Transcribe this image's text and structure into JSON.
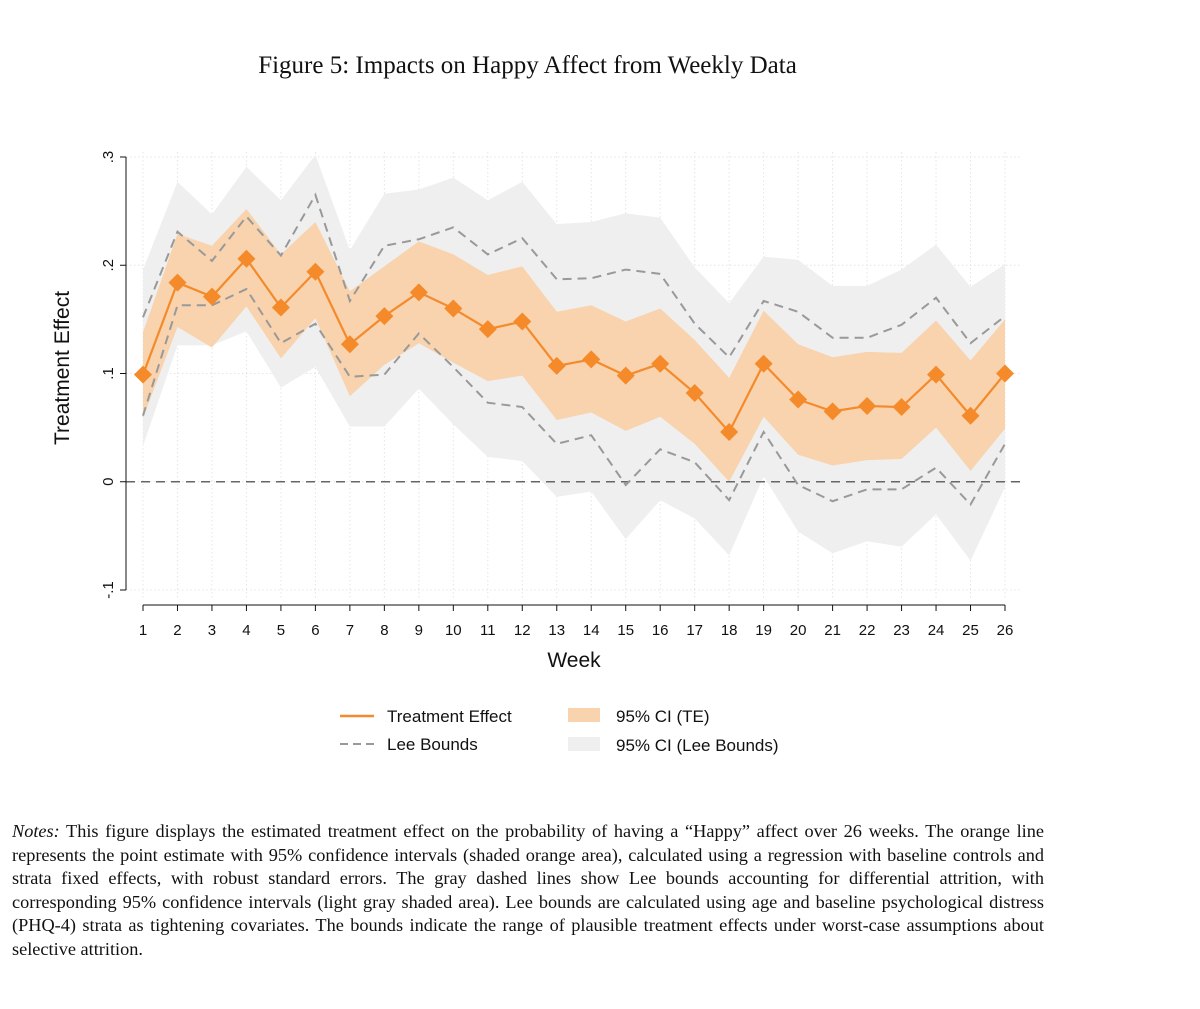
{
  "figure_title": "Figure 5: Impacts on Happy Affect from Weekly Data",
  "notes_label": "Notes:",
  "notes_text": "This figure displays the estimated treatment effect on the probability of having a “Happy” affect over 26 weeks. The orange line represents the point estimate with 95% confidence intervals (shaded orange area), calculated using a regression with baseline controls and strata fixed effects, with robust standard errors. The gray dashed lines show Lee bounds accounting for differential attrition, with corresponding 95% confidence intervals (light gray shaded area). Lee bounds are calculated using age and baseline psychological distress (PHQ-4) strata as tightening covariates. The bounds indicate the range of plausible treatment effects under worst-case assumptions about selective attrition.",
  "colors": {
    "treatment": "#f58a2a",
    "ci_te": "#f8d3ad",
    "lee": "#999999",
    "ci_lee": "#efefef",
    "zero_line": "#666666"
  },
  "chart_data": {
    "type": "line",
    "title": "",
    "xlabel": "Week",
    "ylabel": "Treatment Effect",
    "x": [
      1,
      2,
      3,
      4,
      5,
      6,
      7,
      8,
      9,
      10,
      11,
      12,
      13,
      14,
      15,
      16,
      17,
      18,
      19,
      20,
      21,
      22,
      23,
      24,
      25,
      26
    ],
    "x_tick_labels": [
      "1",
      "2",
      "3",
      "4",
      "5",
      "6",
      "7",
      "8",
      "9",
      "10",
      "11",
      "12",
      "13",
      "14",
      "15",
      "16",
      "17",
      "18",
      "19",
      "20",
      "21",
      "22",
      "23",
      "24",
      "25",
      "26"
    ],
    "ylim": [
      -0.1,
      0.3
    ],
    "y_ticks": [
      -0.1,
      0,
      0.1,
      0.2,
      0.3
    ],
    "y_tick_labels": [
      "-.1",
      "0",
      ".1",
      ".2",
      ".3"
    ],
    "reference_line_y": 0,
    "grid": true,
    "legend_placement": "bottom",
    "legend": [
      {
        "label": "Treatment Effect",
        "kind": "line"
      },
      {
        "label": "95% CI (TE)",
        "kind": "area"
      },
      {
        "label": "Lee Bounds",
        "kind": "dashed"
      },
      {
        "label": "95% CI (Lee Bounds)",
        "kind": "area"
      }
    ],
    "series": [
      {
        "name": "Treatment Effect",
        "values": [
          0.099,
          0.184,
          0.171,
          0.206,
          0.161,
          0.194,
          0.127,
          0.153,
          0.175,
          0.16,
          0.141,
          0.148,
          0.107,
          0.113,
          0.098,
          0.109,
          0.082,
          0.046,
          0.109,
          0.076,
          0.065,
          0.07,
          0.069,
          0.099,
          0.061,
          0.1
        ]
      },
      {
        "name": "95% CI (TE)",
        "lower": [
          0.059,
          0.143,
          0.124,
          0.162,
          0.114,
          0.151,
          0.079,
          0.108,
          0.128,
          0.11,
          0.093,
          0.098,
          0.057,
          0.064,
          0.047,
          0.06,
          0.035,
          0.0,
          0.06,
          0.025,
          0.015,
          0.02,
          0.021,
          0.05,
          0.01,
          0.049
        ],
        "upper": [
          0.138,
          0.229,
          0.218,
          0.252,
          0.21,
          0.24,
          0.176,
          0.199,
          0.222,
          0.21,
          0.191,
          0.199,
          0.157,
          0.163,
          0.148,
          0.16,
          0.131,
          0.096,
          0.158,
          0.127,
          0.115,
          0.12,
          0.119,
          0.149,
          0.112,
          0.15
        ]
      },
      {
        "name": "Lee Bounds (upper)",
        "values": [
          0.152,
          0.231,
          0.204,
          0.245,
          0.209,
          0.265,
          0.167,
          0.218,
          0.224,
          0.235,
          0.21,
          0.225,
          0.187,
          0.188,
          0.196,
          0.192,
          0.146,
          0.115,
          0.167,
          0.157,
          0.133,
          0.133,
          0.145,
          0.17,
          0.128,
          0.153
        ]
      },
      {
        "name": "Lee Bounds (lower)",
        "values": [
          0.061,
          0.163,
          0.163,
          0.178,
          0.128,
          0.146,
          0.097,
          0.099,
          0.137,
          0.106,
          0.073,
          0.069,
          0.035,
          0.043,
          -0.003,
          0.03,
          0.018,
          -0.017,
          0.046,
          -0.003,
          -0.018,
          -0.007,
          -0.007,
          0.013,
          -0.021,
          0.035
        ]
      },
      {
        "name": "95% CI (Lee Bounds)",
        "lower": [
          0.033,
          0.126,
          0.126,
          0.139,
          0.087,
          0.106,
          0.051,
          0.051,
          0.086,
          0.053,
          0.023,
          0.019,
          -0.014,
          -0.009,
          -0.053,
          -0.017,
          -0.034,
          -0.068,
          0.005,
          -0.046,
          -0.066,
          -0.055,
          -0.06,
          -0.03,
          -0.073,
          -0.005
        ],
        "upper": [
          0.196,
          0.277,
          0.247,
          0.291,
          0.26,
          0.302,
          0.214,
          0.266,
          0.27,
          0.281,
          0.26,
          0.277,
          0.238,
          0.24,
          0.248,
          0.244,
          0.198,
          0.165,
          0.208,
          0.205,
          0.181,
          0.181,
          0.196,
          0.219,
          0.18,
          0.201
        ]
      }
    ]
  }
}
